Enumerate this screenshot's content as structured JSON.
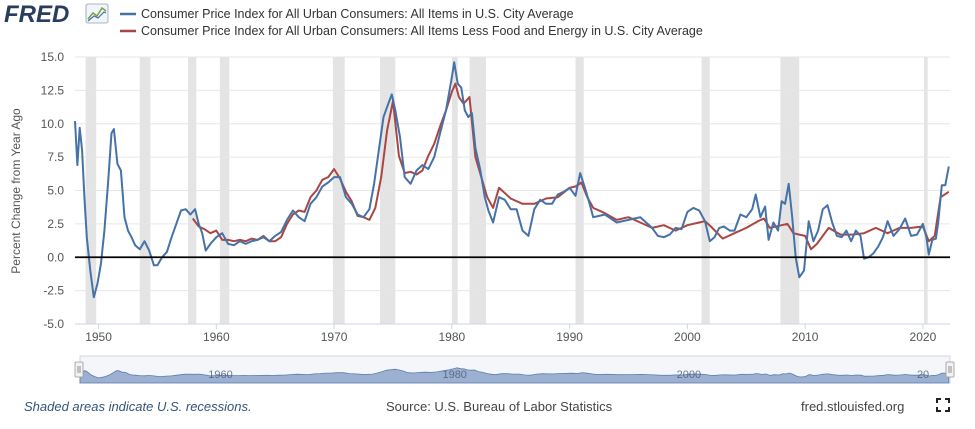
{
  "brand": {
    "logo_text": "FRED"
  },
  "chart_data": {
    "type": "line",
    "title": "",
    "xlabel": "",
    "ylabel": "Percent Change from Year Ago",
    "xlim": [
      1948,
      2022.3
    ],
    "ylim": [
      -5.0,
      15.0
    ],
    "y_ticks": [
      -5.0,
      -2.5,
      0.0,
      2.5,
      5.0,
      7.5,
      10.0,
      12.5,
      15.0
    ],
    "y_tick_labels": [
      "-5.0",
      "-2.5",
      "0.0",
      "2.5",
      "5.0",
      "7.5",
      "10.0",
      "12.5",
      "15.0"
    ],
    "x_ticks": [
      1950,
      1960,
      1970,
      1980,
      1990,
      2000,
      2010,
      2020
    ],
    "x_tick_labels": [
      "1950",
      "1960",
      "1970",
      "1980",
      "1990",
      "2000",
      "2010",
      "2020"
    ],
    "grid": true,
    "legend_position": "top",
    "recessions": [
      [
        1948.9,
        1949.8
      ],
      [
        1953.5,
        1954.4
      ],
      [
        1957.6,
        1958.3
      ],
      [
        1960.3,
        1961.1
      ],
      [
        1969.9,
        1970.9
      ],
      [
        1973.9,
        1975.2
      ],
      [
        1980.0,
        1980.5
      ],
      [
        1981.5,
        1982.9
      ],
      [
        1990.5,
        1991.2
      ],
      [
        2001.2,
        2001.9
      ],
      [
        2007.9,
        2009.5
      ],
      [
        2020.1,
        2020.4
      ]
    ],
    "series": [
      {
        "name": "Consumer Price Index for All Urban Consumers: All Items in U.S. City Average",
        "color": "#4572a7",
        "x": [
          1948.0,
          1948.2,
          1948.4,
          1948.6,
          1948.8,
          1949.0,
          1949.3,
          1949.6,
          1949.9,
          1950.2,
          1950.5,
          1950.8,
          1951.1,
          1951.3,
          1951.6,
          1951.9,
          1952.2,
          1952.5,
          1952.8,
          1953.1,
          1953.5,
          1953.9,
          1954.3,
          1954.7,
          1955.0,
          1955.4,
          1955.8,
          1956.2,
          1956.6,
          1957.0,
          1957.4,
          1957.8,
          1958.2,
          1958.5,
          1958.8,
          1959.1,
          1959.5,
          1960.0,
          1960.5,
          1961.0,
          1961.5,
          1962.0,
          1962.5,
          1963.0,
          1963.5,
          1964.0,
          1964.5,
          1965.0,
          1965.5,
          1966.0,
          1966.5,
          1967.0,
          1967.5,
          1968.0,
          1968.5,
          1969.0,
          1969.5,
          1970.0,
          1970.5,
          1971.0,
          1971.5,
          1972.0,
          1972.5,
          1973.0,
          1973.4,
          1973.8,
          1974.2,
          1974.6,
          1974.9,
          1975.2,
          1975.6,
          1976.0,
          1976.5,
          1977.0,
          1977.5,
          1978.0,
          1978.5,
          1979.0,
          1979.5,
          1980.0,
          1980.2,
          1980.5,
          1980.8,
          1981.1,
          1981.4,
          1981.7,
          1982.0,
          1982.4,
          1982.8,
          1983.1,
          1983.5,
          1984.0,
          1984.5,
          1985.0,
          1985.5,
          1986.0,
          1986.5,
          1987.0,
          1987.5,
          1988.0,
          1988.5,
          1989.0,
          1989.5,
          1990.0,
          1990.5,
          1990.9,
          1991.3,
          1991.7,
          1992.0,
          1992.5,
          1993.0,
          1994.0,
          1995.0,
          1996.0,
          1997.0,
          1997.5,
          1998.0,
          1998.5,
          1999.0,
          1999.5,
          2000.0,
          2000.5,
          2001.0,
          2001.5,
          2001.9,
          2002.3,
          2002.7,
          2003.1,
          2003.6,
          2004.0,
          2004.5,
          2005.0,
          2005.5,
          2005.8,
          2006.2,
          2006.6,
          2006.9,
          2007.3,
          2007.7,
          2008.0,
          2008.3,
          2008.6,
          2008.9,
          2009.2,
          2009.5,
          2009.9,
          2010.3,
          2010.7,
          2011.1,
          2011.5,
          2011.9,
          2012.3,
          2012.7,
          2013.1,
          2013.5,
          2013.9,
          2014.3,
          2014.7,
          2015.0,
          2015.4,
          2015.8,
          2016.2,
          2016.6,
          2017.0,
          2017.5,
          2018.0,
          2018.5,
          2019.0,
          2019.5,
          2020.0,
          2020.3,
          2020.5,
          2020.8,
          2021.1,
          2021.3,
          2021.6,
          2021.9,
          2022.2
        ],
        "values": [
          10.2,
          6.9,
          9.7,
          8.0,
          4.5,
          1.5,
          -1.0,
          -3.0,
          -2.0,
          -0.5,
          2.0,
          5.5,
          9.3,
          9.6,
          7.0,
          6.5,
          3.0,
          2.0,
          1.5,
          0.9,
          0.6,
          1.2,
          0.5,
          -0.6,
          -0.6,
          0.0,
          0.4,
          1.5,
          2.5,
          3.5,
          3.6,
          3.2,
          3.6,
          2.5,
          1.8,
          0.5,
          1.0,
          1.5,
          1.8,
          1.0,
          0.9,
          1.2,
          1.0,
          1.2,
          1.3,
          1.5,
          1.2,
          1.6,
          1.9,
          2.8,
          3.5,
          3.0,
          2.7,
          4.0,
          4.5,
          5.3,
          5.6,
          6.0,
          6.0,
          4.5,
          4.0,
          3.2,
          3.0,
          3.6,
          5.5,
          8.0,
          10.5,
          11.5,
          12.2,
          11.0,
          9.0,
          6.0,
          5.5,
          6.5,
          6.9,
          6.6,
          7.5,
          9.3,
          11.0,
          13.5,
          14.6,
          13.0,
          12.7,
          11.0,
          10.5,
          10.8,
          8.2,
          6.6,
          4.5,
          3.5,
          2.6,
          4.5,
          4.3,
          3.6,
          3.6,
          2.0,
          1.6,
          3.6,
          4.3,
          4.0,
          4.0,
          4.7,
          4.9,
          5.2,
          4.6,
          6.3,
          5.2,
          4.0,
          3.0,
          3.1,
          3.2,
          2.6,
          2.8,
          3.0,
          2.2,
          1.6,
          1.5,
          1.7,
          2.2,
          2.1,
          3.4,
          3.7,
          3.5,
          2.7,
          1.2,
          1.5,
          2.2,
          2.3,
          2.0,
          2.0,
          3.2,
          3.0,
          3.6,
          4.7,
          3.0,
          3.8,
          1.3,
          2.6,
          2.0,
          4.2,
          4.0,
          5.5,
          3.0,
          0.0,
          -1.5,
          -1.0,
          2.7,
          1.2,
          2.0,
          3.6,
          3.9,
          2.6,
          1.6,
          1.5,
          2.0,
          1.2,
          2.0,
          1.6,
          -0.1,
          0.0,
          0.3,
          0.8,
          1.5,
          2.7,
          1.6,
          2.1,
          2.9,
          1.6,
          1.7,
          2.5,
          1.5,
          0.2,
          1.3,
          1.4,
          2.6,
          5.4,
          5.4,
          6.8
        ]
      },
      {
        "name": "Consumer Price Index for All Urban Consumers: All Items Less Food and Energy in U.S. City Average",
        "color": "#aa4643",
        "x": [
          1958.0,
          1958.5,
          1959.0,
          1959.5,
          1960.0,
          1960.5,
          1961.0,
          1961.5,
          1962.0,
          1962.5,
          1963.0,
          1963.5,
          1964.0,
          1964.5,
          1965.0,
          1965.5,
          1966.0,
          1966.5,
          1967.0,
          1967.5,
          1968.0,
          1968.5,
          1969.0,
          1969.5,
          1970.0,
          1970.5,
          1971.0,
          1971.5,
          1972.0,
          1972.5,
          1973.0,
          1973.5,
          1974.0,
          1974.5,
          1975.0,
          1975.5,
          1976.0,
          1976.5,
          1977.0,
          1977.5,
          1978.0,
          1978.5,
          1979.0,
          1979.5,
          1980.0,
          1980.3,
          1980.6,
          1981.0,
          1981.5,
          1982.0,
          1982.5,
          1983.0,
          1983.5,
          1984.0,
          1985.0,
          1986.0,
          1987.0,
          1988.0,
          1989.0,
          1990.0,
          1990.5,
          1991.0,
          1991.5,
          1992.0,
          1993.0,
          1994.0,
          1995.0,
          1996.0,
          1997.0,
          1998.0,
          1999.0,
          2000.0,
          2001.0,
          2001.5,
          2002.0,
          2003.0,
          2004.0,
          2005.0,
          2006.0,
          2006.5,
          2007.0,
          2008.0,
          2008.5,
          2009.0,
          2009.5,
          2010.0,
          2010.5,
          2011.0,
          2012.0,
          2013.0,
          2014.0,
          2015.0,
          2016.0,
          2017.0,
          2018.0,
          2019.0,
          2020.0,
          2020.5,
          2021.0,
          2021.5,
          2022.2
        ],
        "values": [
          2.9,
          2.3,
          2.1,
          1.8,
          2.0,
          1.3,
          1.3,
          1.2,
          1.3,
          1.2,
          1.4,
          1.3,
          1.6,
          1.2,
          1.2,
          1.5,
          2.5,
          3.2,
          3.5,
          3.4,
          4.5,
          5.0,
          5.8,
          6.0,
          6.6,
          5.9,
          4.9,
          4.2,
          3.1,
          3.0,
          2.8,
          3.7,
          6.0,
          9.5,
          11.7,
          7.6,
          6.3,
          6.4,
          6.2,
          6.5,
          7.6,
          8.5,
          9.8,
          11.0,
          12.4,
          13.0,
          12.0,
          11.5,
          12.0,
          7.5,
          6.0,
          4.5,
          3.7,
          5.2,
          4.4,
          4.0,
          4.0,
          4.4,
          4.5,
          5.2,
          5.3,
          5.6,
          4.5,
          3.7,
          3.3,
          2.8,
          3.0,
          2.6,
          2.2,
          2.4,
          2.0,
          2.4,
          2.6,
          2.7,
          2.3,
          1.4,
          1.8,
          2.2,
          2.7,
          2.9,
          2.2,
          2.4,
          2.5,
          1.8,
          1.7,
          1.6,
          0.6,
          1.0,
          2.2,
          1.7,
          1.7,
          1.8,
          2.2,
          1.8,
          2.2,
          2.2,
          2.3,
          1.2,
          1.6,
          4.5,
          4.9
        ]
      }
    ]
  },
  "navigator": {
    "labels": [
      "1960",
      "1980",
      "2000",
      "20"
    ]
  },
  "footer": {
    "recession_note": "Shaded areas indicate U.S. recessions.",
    "source": "Source: U.S. Bureau of Labor Statistics",
    "site": "fred.stlouisfed.org"
  }
}
